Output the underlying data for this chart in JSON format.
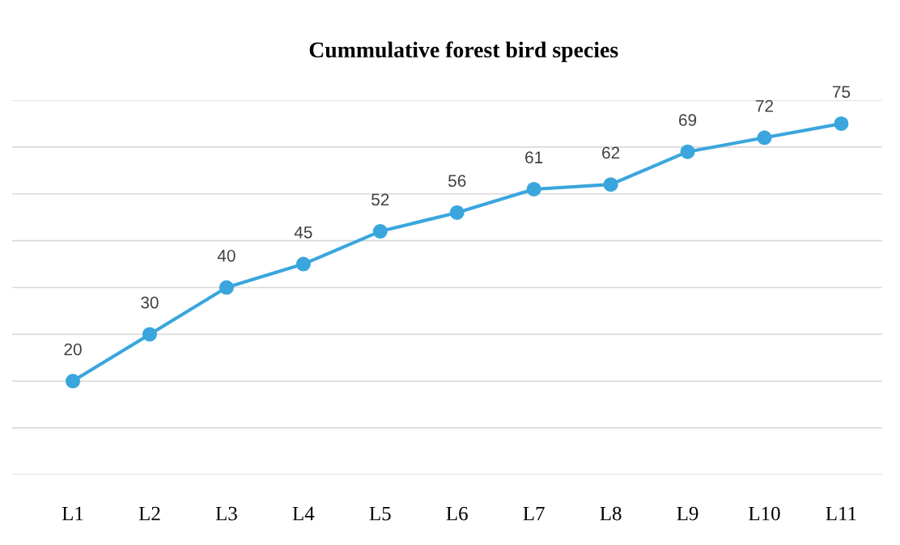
{
  "chart_data": {
    "type": "line",
    "title": "Cummulative forest bird species",
    "categories": [
      "L1",
      "L2",
      "L3",
      "L4",
      "L5",
      "L6",
      "L7",
      "L8",
      "L9",
      "L10",
      "L11"
    ],
    "values": [
      20,
      30,
      40,
      45,
      52,
      56,
      61,
      62,
      69,
      72,
      75
    ],
    "color": "#3aa6dd",
    "marker": "circle",
    "line_style": "solid",
    "data_labels": true,
    "ylim": [
      0,
      80
    ],
    "yticks": [
      {
        "value": 0,
        "label": null
      },
      {
        "value": 10,
        "label": null
      },
      {
        "value": 20,
        "label": null
      },
      {
        "value": 30,
        "label": null
      },
      {
        "value": 40,
        "label": null
      },
      {
        "value": 50,
        "label": null
      },
      {
        "value": 60,
        "label": null
      },
      {
        "value": 70,
        "label": null
      },
      {
        "value": 80,
        "label": null
      }
    ],
    "grid": "y",
    "tick_labels": "x"
  }
}
